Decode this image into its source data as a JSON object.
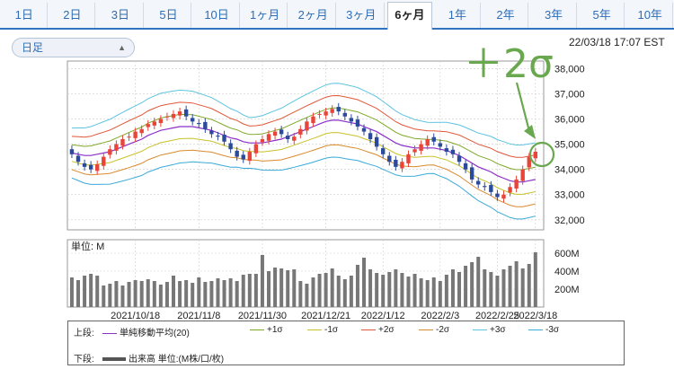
{
  "tabs": [
    {
      "label": "1日",
      "active": false
    },
    {
      "label": "2日",
      "active": false
    },
    {
      "label": "3日",
      "active": false
    },
    {
      "label": "5日",
      "active": false
    },
    {
      "label": "10日",
      "active": false
    },
    {
      "label": "1ヶ月",
      "active": false
    },
    {
      "label": "2ヶ月",
      "active": false
    },
    {
      "label": "3ヶ月",
      "active": false
    },
    {
      "label": "6ヶ月",
      "active": true
    },
    {
      "label": "1年",
      "active": false
    },
    {
      "label": "2年",
      "active": false
    },
    {
      "label": "3年",
      "active": false
    },
    {
      "label": "5年",
      "active": false
    },
    {
      "label": "10年",
      "active": false
    }
  ],
  "period_select": {
    "value": "日足"
  },
  "timestamp": "22/03/18 17:07 EST",
  "annotation": {
    "text": "＋2σ",
    "color": "#6aa84f"
  },
  "colors": {
    "up_candle": "#e8443a",
    "down_candle": "#2b4a9c",
    "sma": "#8b2fc9",
    "p1": "#7fa829",
    "m1": "#c9c12a",
    "p2": "#e0573a",
    "m2": "#d98a2e",
    "p3": "#5fc4e0",
    "m3": "#3aaad8",
    "volume": "#777777"
  },
  "chart_data": [
    {
      "type": "candlestick",
      "y_ticks": [
        "38,000",
        "37,000",
        "36,000",
        "35,000",
        "34,000",
        "33,000",
        "32,000"
      ],
      "ylim": [
        31600,
        38300
      ],
      "x_labels": [
        "2021/10/18",
        "2021/11/8",
        "2021/11/30",
        "2021/12/21",
        "2022/1/12",
        "2022/2/3",
        "2022/2/25",
        "2022/3/18"
      ],
      "close": [
        34600,
        34300,
        34100,
        34000,
        34200,
        34500,
        34800,
        35000,
        35200,
        35300,
        35500,
        35600,
        35800,
        35900,
        36000,
        36100,
        36200,
        36300,
        36100,
        35900,
        35800,
        35600,
        35400,
        35300,
        35100,
        34800,
        34500,
        34400,
        34700,
        35000,
        35200,
        35400,
        35500,
        35400,
        35200,
        35300,
        35600,
        35900,
        36100,
        36200,
        36300,
        36400,
        36300,
        36100,
        35900,
        35700,
        35500,
        35200,
        34900,
        34600,
        34300,
        34100,
        34300,
        34600,
        34800,
        35000,
        35200,
        35100,
        34900,
        34700,
        34600,
        34300,
        34000,
        33600,
        33400,
        33300,
        33100,
        32900,
        33000,
        33300,
        33600,
        34000,
        34500,
        34700
      ],
      "sma_20": [
        34650,
        34600,
        34550,
        34550,
        34600,
        34650,
        34700,
        34800,
        34900,
        35000,
        35100,
        35200,
        35350,
        35450,
        35550,
        35600,
        35650,
        35700,
        35700,
        35700,
        35650,
        35600,
        35550,
        35450,
        35350,
        35250,
        35200,
        35100,
        35050,
        35050,
        35050,
        35100,
        35150,
        35200,
        35300,
        35400,
        35500,
        35600,
        35700,
        35800,
        35900,
        35950,
        35950,
        35900,
        35850,
        35800,
        35700,
        35600,
        35500,
        35350,
        35200,
        35050,
        34950,
        34900,
        34850,
        34850,
        34850,
        34850,
        34800,
        34750,
        34650,
        34550,
        34400,
        34250,
        34100,
        34000,
        33900,
        33750,
        33650,
        33550,
        33500,
        33500,
        33550,
        33600
      ]
    },
    {
      "type": "bar",
      "y_ticks": [
        "600M",
        "400M",
        "200M"
      ],
      "ylim": [
        0,
        750
      ],
      "values": [
        330,
        300,
        350,
        370,
        350,
        240,
        260,
        290,
        240,
        280,
        300,
        290,
        310,
        290,
        250,
        280,
        350,
        290,
        300,
        270,
        330,
        280,
        290,
        320,
        300,
        320,
        290,
        360,
        370,
        370,
        580,
        400,
        440,
        430,
        410,
        420,
        290,
        260,
        330,
        370,
        380,
        430,
        350,
        310,
        350,
        470,
        550,
        420,
        380,
        360,
        390,
        420,
        380,
        340,
        370,
        320,
        300,
        330,
        290,
        360,
        420,
        390,
        460,
        500,
        560,
        420,
        390,
        350,
        420,
        460,
        510,
        430,
        480,
        610
      ]
    }
  ],
  "legend": {
    "upper_head": "上段:",
    "lower_head": "下段:",
    "upper": [
      {
        "label": "単純移動平均(20)",
        "color_key": "sma"
      },
      {
        "label": "+1σ",
        "color_key": "p1"
      },
      {
        "label": "-1σ",
        "color_key": "m1"
      },
      {
        "label": "+2σ",
        "color_key": "p2"
      },
      {
        "label": "-2σ",
        "color_key": "m2"
      },
      {
        "label": "+3σ",
        "color_key": "p3"
      },
      {
        "label": "-3σ",
        "color_key": "m3"
      }
    ],
    "lower_label": "出来高 単位:(M株/口/枚)",
    "volume_unit": "単位: M"
  }
}
